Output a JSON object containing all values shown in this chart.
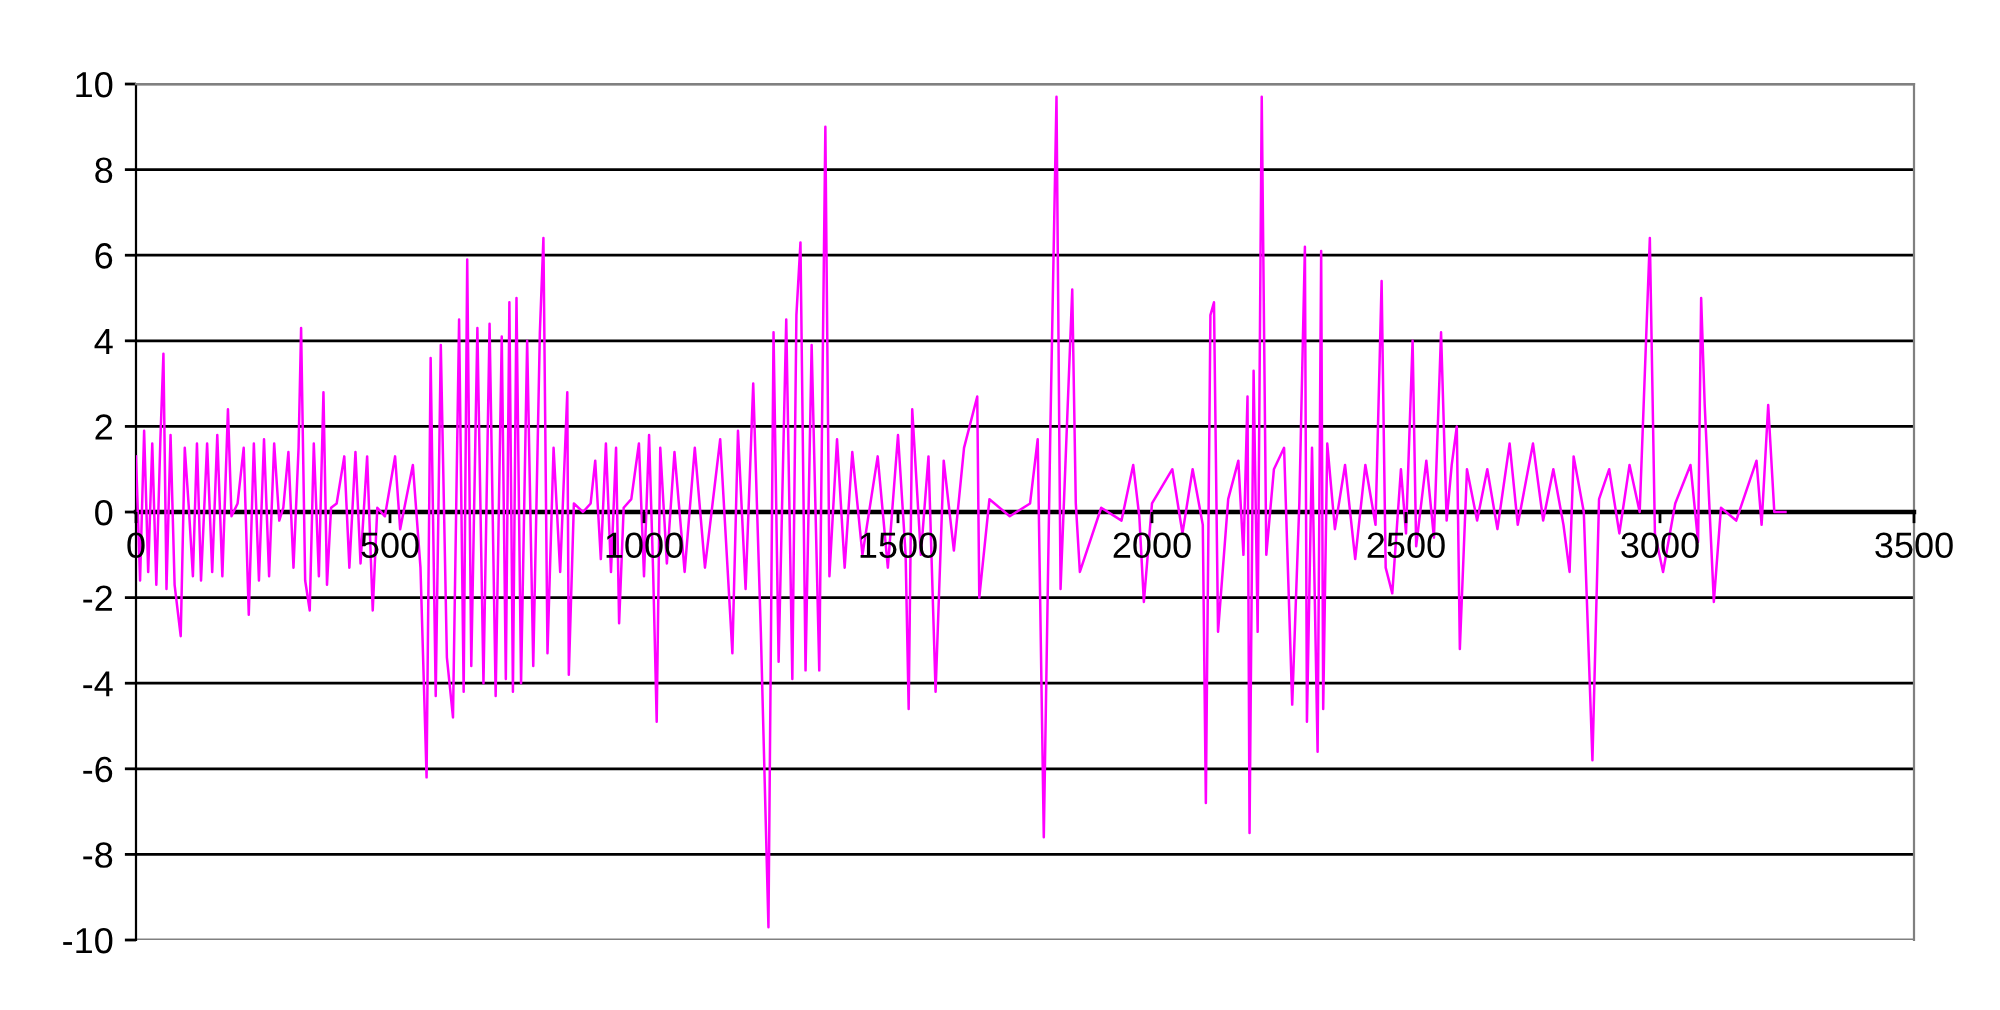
{
  "chart_data": {
    "type": "line",
    "color": "#ff00ff",
    "line_style": "solid",
    "grid": "y",
    "xlim": [
      0,
      3500
    ],
    "xticks": [
      0,
      500,
      1000,
      1500,
      2000,
      2500,
      3000,
      3500
    ],
    "ylim": [
      -10,
      10
    ],
    "yticks": [
      -10,
      -8,
      -6,
      -4,
      -2,
      0,
      2,
      4,
      6,
      8,
      10
    ],
    "x": [
      0,
      8,
      16,
      24,
      32,
      40,
      48,
      54,
      60,
      68,
      76,
      88,
      96,
      104,
      112,
      120,
      128,
      140,
      150,
      160,
      170,
      181,
      188,
      200,
      212,
      222,
      232,
      242,
      252,
      262,
      272,
      282,
      290,
      300,
      310,
      320,
      325,
      333,
      342,
      350,
      360,
      369,
      376,
      384,
      395,
      410,
      420,
      432,
      442,
      455,
      466,
      475,
      490,
      510,
      520,
      530,
      545,
      560,
      572,
      580,
      590,
      600,
      612,
      624,
      636,
      645,
      652,
      660,
      672,
      684,
      696,
      708,
      720,
      728,
      735,
      742,
      749,
      758,
      770,
      782,
      795,
      802,
      810,
      822,
      835,
      849,
      852,
      862,
      880,
      895,
      904,
      915,
      925,
      935,
      945,
      951,
      960,
      975,
      990,
      1000,
      1010,
      1018,
      1025,
      1032,
      1045,
      1060,
      1080,
      1100,
      1120,
      1150,
      1174,
      1185,
      1200,
      1215,
      1230,
      1245,
      1255,
      1265,
      1280,
      1292,
      1300,
      1308,
      1318,
      1330,
      1345,
      1357,
      1365,
      1380,
      1395,
      1410,
      1430,
      1460,
      1480,
      1500,
      1515,
      1521,
      1528,
      1545,
      1560,
      1574,
      1590,
      1610,
      1630,
      1656,
      1660,
      1680,
      1720,
      1760,
      1775,
      1787,
      1800,
      1812,
      1820,
      1843,
      1850,
      1858,
      1900,
      1940,
      1963,
      1975,
      1984,
      2000,
      2040,
      2060,
      2080,
      2100,
      2106,
      2115,
      2122,
      2130,
      2150,
      2170,
      2180,
      2188,
      2192,
      2200,
      2208,
      2216,
      2225,
      2240,
      2260,
      2276,
      2290,
      2301,
      2305,
      2315,
      2326,
      2333,
      2337,
      2345,
      2360,
      2380,
      2400,
      2420,
      2440,
      2452,
      2460,
      2473,
      2490,
      2500,
      2513,
      2520,
      2540,
      2555,
      2569,
      2580,
      2590,
      2600,
      2606,
      2620,
      2640,
      2660,
      2680,
      2704,
      2720,
      2750,
      2770,
      2790,
      2810,
      2822,
      2830,
      2850,
      2867,
      2880,
      2900,
      2920,
      2940,
      2960,
      2980,
      2990,
      3006,
      3030,
      3060,
      3075,
      3081,
      3088,
      3106,
      3120,
      3150,
      3190,
      3200,
      3213,
      3225,
      3247
    ],
    "values": [
      1.3,
      -1.6,
      1.9,
      -1.4,
      1.6,
      -1.7,
      1.7,
      3.7,
      -1.8,
      1.8,
      -1.7,
      -2.9,
      1.5,
      0.1,
      -1.5,
      1.6,
      -1.6,
      1.6,
      -1.4,
      1.8,
      -1.5,
      2.4,
      -0.1,
      0.2,
      1.5,
      -2.4,
      1.6,
      -1.6,
      1.7,
      -1.5,
      1.6,
      -0.2,
      0.1,
      1.4,
      -1.3,
      1.5,
      4.3,
      -1.6,
      -2.3,
      1.6,
      -1.5,
      2.8,
      -1.7,
      0.1,
      0.2,
      1.3,
      -1.3,
      1.4,
      -1.2,
      1.3,
      -2.3,
      0.1,
      -0.1,
      1.3,
      -0.4,
      0.2,
      1.1,
      -1.3,
      -6.2,
      3.6,
      -4.3,
      3.9,
      -3.4,
      -4.8,
      4.5,
      -4.2,
      5.9,
      -3.6,
      4.3,
      -4.0,
      4.4,
      -4.3,
      4.1,
      -3.9,
      4.9,
      -4.2,
      5.0,
      -4.0,
      4.0,
      -3.6,
      4.2,
      6.4,
      -3.3,
      1.5,
      -1.4,
      2.8,
      -3.8,
      0.2,
      0.0,
      0.2,
      1.2,
      -1.1,
      1.6,
      -1.4,
      1.5,
      -2.6,
      0.1,
      0.3,
      1.6,
      -1.5,
      1.8,
      -1.4,
      -4.9,
      1.5,
      -1.2,
      1.4,
      -1.4,
      1.5,
      -1.3,
      1.7,
      -3.3,
      1.9,
      -1.8,
      3.0,
      -2.8,
      -9.7,
      4.2,
      -3.5,
      4.5,
      -3.9,
      4.6,
      6.3,
      -3.7,
      3.9,
      -3.7,
      9.0,
      -1.5,
      1.7,
      -1.3,
      1.4,
      -1.0,
      1.3,
      -1.3,
      1.8,
      -1.0,
      -4.6,
      2.4,
      -1.0,
      1.3,
      -4.2,
      1.2,
      -0.9,
      1.5,
      2.7,
      -2.0,
      0.3,
      -0.1,
      0.2,
      1.7,
      -7.6,
      2.0,
      9.7,
      -1.8,
      5.2,
      0.2,
      -1.4,
      0.1,
      -0.2,
      1.1,
      -0.1,
      -2.1,
      0.2,
      1.0,
      -0.5,
      1.0,
      -0.3,
      -6.8,
      4.6,
      4.9,
      -2.8,
      0.3,
      1.2,
      -1.0,
      2.7,
      -7.5,
      3.3,
      -2.8,
      9.7,
      -1.0,
      1.0,
      1.5,
      -4.5,
      0.2,
      6.2,
      -4.9,
      1.5,
      -5.6,
      6.1,
      -4.6,
      1.6,
      -0.4,
      1.1,
      -1.1,
      1.1,
      -0.3,
      5.4,
      -1.3,
      -1.9,
      1.0,
      -0.5,
      4.0,
      -0.8,
      1.2,
      -0.6,
      4.2,
      -0.2,
      1.1,
      2.0,
      -3.2,
      1.0,
      -0.2,
      1.0,
      -0.4,
      1.6,
      -0.3,
      1.6,
      -0.2,
      1.0,
      -0.3,
      -1.4,
      1.3,
      0.0,
      -5.8,
      0.3,
      1.0,
      -0.5,
      1.1,
      0.0,
      6.4,
      -0.5,
      -1.4,
      0.2,
      1.1,
      -0.7,
      5.0,
      2.5,
      -2.1,
      0.1,
      -0.2,
      1.2,
      -0.3,
      2.5,
      0.0,
      0.0
    ]
  }
}
